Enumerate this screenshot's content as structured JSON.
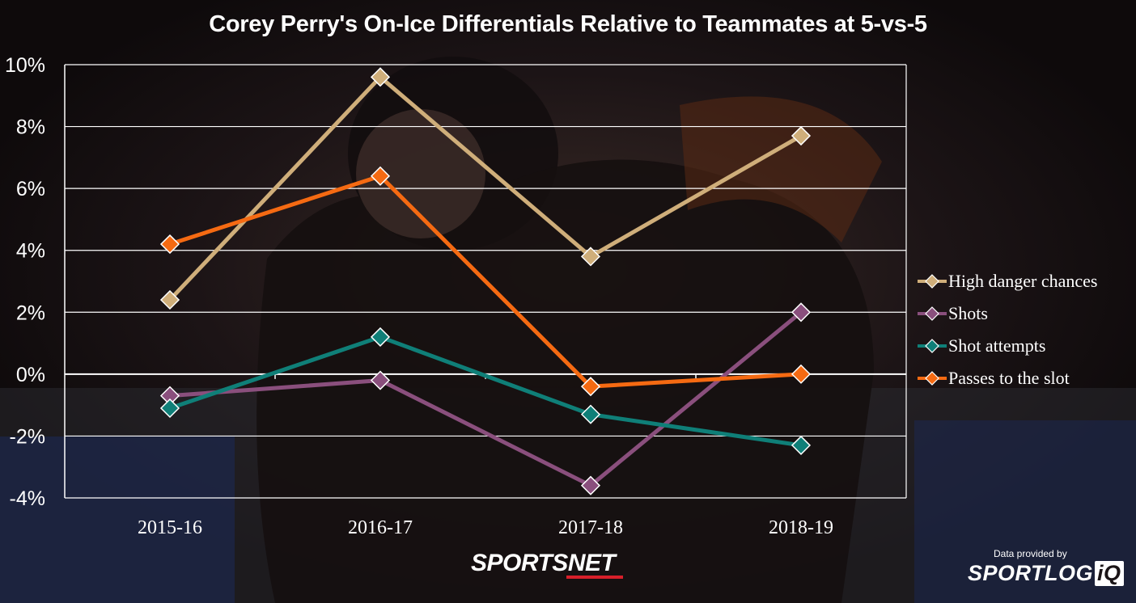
{
  "chart_data": {
    "type": "line",
    "title": "Corey Perry's On-Ice Differentials Relative to Teammates at 5-vs-5",
    "categories": [
      "2015-16",
      "2016-17",
      "2017-18",
      "2018-19"
    ],
    "y_ticks": [
      "10%",
      "8%",
      "6%",
      "4%",
      "2%",
      "0%",
      "-2%",
      "-4%"
    ],
    "ylim": [
      -4,
      10
    ],
    "grid": true,
    "legend_position": "right",
    "series": [
      {
        "name": "High danger chances",
        "color": "#cfae7a",
        "values": [
          2.4,
          9.6,
          3.8,
          7.7
        ]
      },
      {
        "name": "Shots",
        "color": "#8a4f7d",
        "values": [
          -0.7,
          -0.2,
          -3.6,
          2.0
        ]
      },
      {
        "name": "Shot attempts",
        "color": "#0f7f78",
        "values": [
          -1.1,
          1.2,
          -1.3,
          -2.3
        ]
      },
      {
        "name": "Passes to the slot",
        "color": "#f56a12",
        "values": [
          4.2,
          6.4,
          -0.4,
          0.0
        ]
      }
    ]
  },
  "branding": {
    "network": "SPORTSNET",
    "credit_line": "Data provided by",
    "credit_brand": "SPORTLOG",
    "credit_brand_suffix": "iQ"
  }
}
